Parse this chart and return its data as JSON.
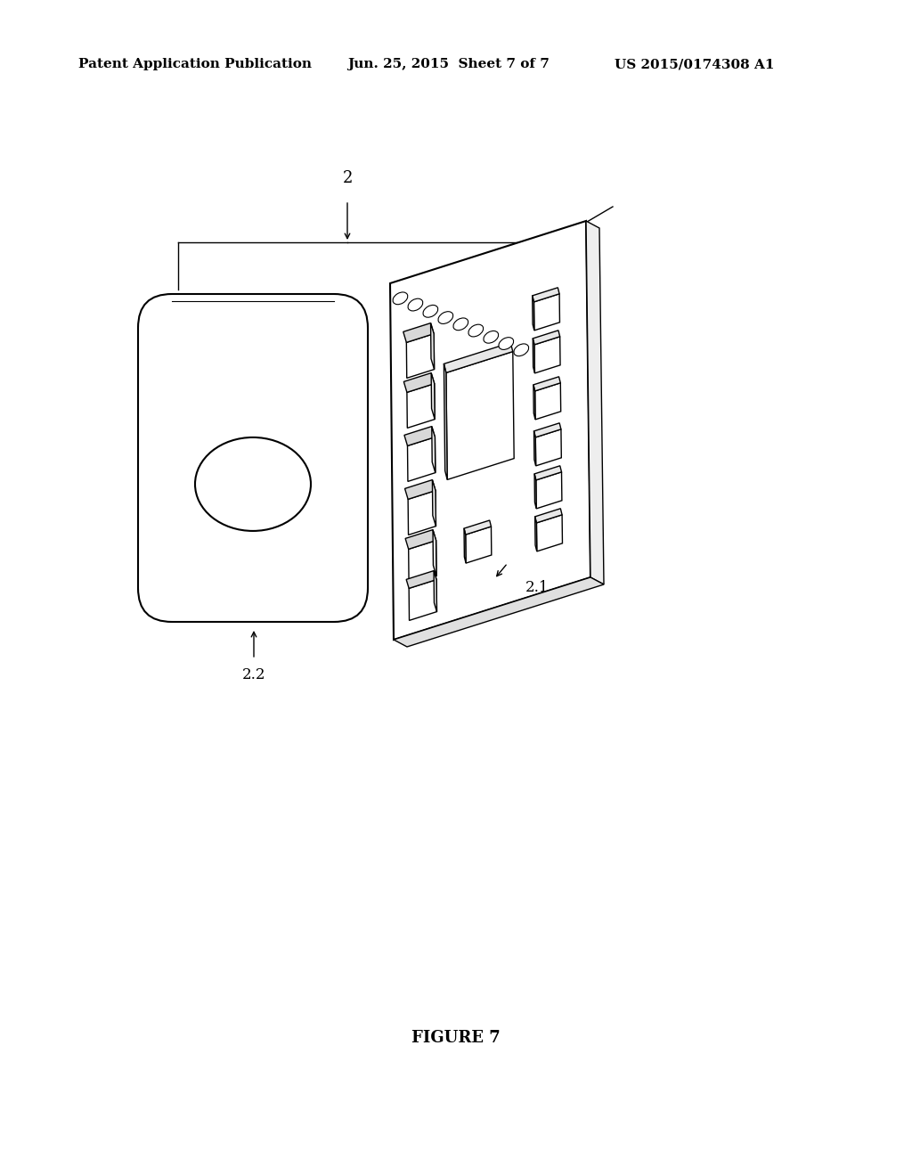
{
  "bg_color": "#ffffff",
  "header_left": "Patent Application Publication",
  "header_mid": "Jun. 25, 2015  Sheet 7 of 7",
  "header_right": "US 2015/0174308 A1",
  "label_2": "2",
  "label_21": "2.1",
  "label_22": "2.2",
  "figure_label": "FIGURE 7",
  "header_fontsize": 11,
  "figure_fontsize": 13,
  "lw_main": 1.5,
  "lw_thin": 1.0,
  "lw_fine": 0.8
}
